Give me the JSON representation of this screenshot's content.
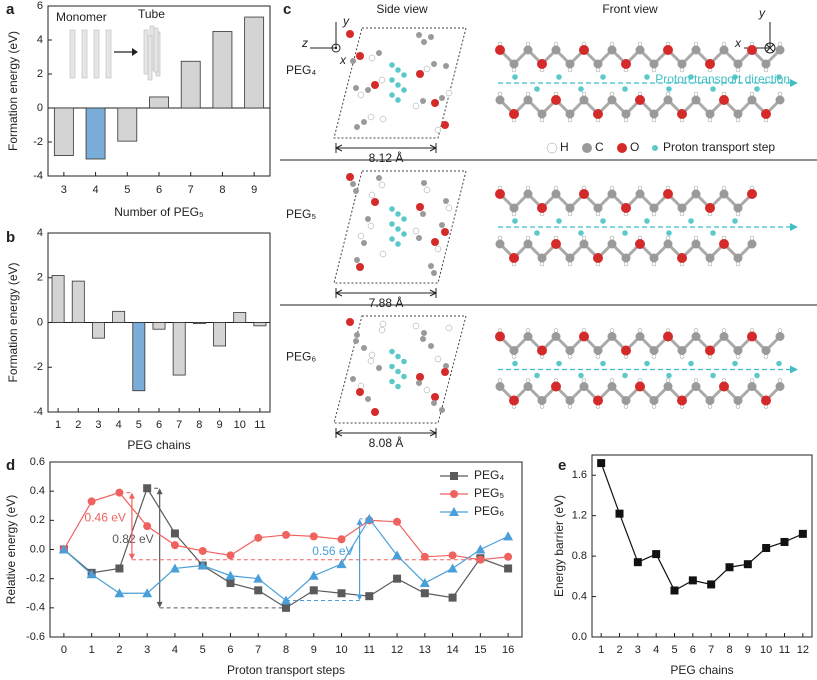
{
  "chart_data": [
    {
      "type": "bar",
      "label": "a",
      "y_label": "Formation energy (eV)",
      "x_label": "Number of PEG₅",
      "categories": [
        "3",
        "4",
        "5",
        "6",
        "7",
        "8",
        "9"
      ],
      "values": [
        -2.8,
        -3.0,
        -1.95,
        0.65,
        2.75,
        4.5,
        5.35
      ],
      "colors": [
        "#d4d4d4",
        "#7aaed8",
        "#d4d4d4",
        "#d4d4d4",
        "#d4d4d4",
        "#d4d4d4",
        "#d4d4d4"
      ],
      "ylim": [
        -4,
        6
      ],
      "yticks": [
        -4,
        -2,
        0,
        2,
        4,
        6
      ],
      "annotations": [
        "Monomer",
        "Tube"
      ]
    },
    {
      "type": "bar",
      "label": "b",
      "y_label": "Formation energy (eV)",
      "x_label": "PEG chains",
      "categories": [
        "1",
        "2",
        "3",
        "4",
        "5",
        "6",
        "7",
        "8",
        "9",
        "10",
        "11"
      ],
      "values": [
        2.1,
        1.85,
        -0.7,
        0.5,
        -3.05,
        -0.3,
        -2.35,
        -0.05,
        -1.05,
        0.45,
        -0.15
      ],
      "colors": [
        "#d4d4d4",
        "#d4d4d4",
        "#d4d4d4",
        "#d4d4d4",
        "#7aaed8",
        "#d4d4d4",
        "#d4d4d4",
        "#d4d4d4",
        "#d4d4d4",
        "#d4d4d4",
        "#d4d4d4"
      ],
      "ylim": [
        -4,
        4
      ],
      "yticks": [
        -4,
        -2,
        0,
        2,
        4
      ]
    },
    {
      "type": "line",
      "label": "d",
      "y_label": "Relative energy (eV)",
      "x_label": "Proton transport steps",
      "x": [
        0,
        1,
        2,
        3,
        4,
        5,
        6,
        7,
        8,
        9,
        10,
        11,
        12,
        13,
        14,
        15,
        16
      ],
      "xlim": [
        -0.5,
        16.5
      ],
      "xticks": [
        0,
        1,
        2,
        3,
        4,
        5,
        6,
        7,
        8,
        9,
        10,
        11,
        12,
        13,
        14,
        15,
        16
      ],
      "ylim": [
        -0.6,
        0.6
      ],
      "yticks": [
        -0.6,
        -0.4,
        -0.2,
        {
          "value": 0,
          "label": "0.0"
        },
        0.2,
        0.4,
        0.6
      ],
      "legend": "upper right",
      "series": [
        {
          "name": "PEG₄",
          "color": "#5a5a5a",
          "marker": "square",
          "annotation": "0.82 eV",
          "values": [
            0,
            -0.16,
            -0.13,
            0.42,
            0.11,
            -0.11,
            -0.23,
            -0.28,
            -0.4,
            -0.28,
            -0.3,
            -0.32,
            -0.2,
            -0.3,
            -0.33,
            -0.06,
            -0.13
          ]
        },
        {
          "name": "PEG₅",
          "color": "#f0625f",
          "marker": "circle",
          "annotation": "0.46 eV",
          "values": [
            0,
            0.33,
            0.39,
            0.16,
            0.03,
            -0.01,
            -0.04,
            0.08,
            0.1,
            0.09,
            0.07,
            0.2,
            0.19,
            -0.05,
            -0.04,
            -0.07,
            -0.05
          ]
        },
        {
          "name": "PEG₆",
          "color": "#4a9fd8",
          "marker": "triangle",
          "annotation": "0.56 eV",
          "values": [
            0,
            -0.17,
            -0.3,
            -0.3,
            -0.13,
            -0.11,
            -0.18,
            -0.2,
            -0.35,
            -0.18,
            -0.1,
            0.21,
            -0.04,
            -0.23,
            -0.13,
            0.0,
            0.09
          ]
        }
      ]
    },
    {
      "type": "line",
      "label": "e",
      "y_label": "Energy barrier (eV)",
      "x_label": "PEG chains",
      "x": [
        1,
        2,
        3,
        4,
        5,
        6,
        7,
        8,
        9,
        10,
        11,
        12
      ],
      "xlim": [
        0.5,
        12.5
      ],
      "xticks": [
        1,
        2,
        3,
        4,
        5,
        6,
        7,
        8,
        9,
        10,
        11,
        12
      ],
      "ylim": [
        0,
        1.8
      ],
      "yticks": [
        {
          "value": 0,
          "label": "0.0"
        },
        0.4,
        0.8,
        1.2,
        1.6
      ],
      "series": [
        {
          "name": "Energy barrier",
          "color": "#111111",
          "marker": "square",
          "values": [
            1.72,
            1.22,
            0.74,
            0.82,
            0.46,
            0.56,
            0.52,
            0.69,
            0.72,
            0.88,
            0.94,
            1.02
          ]
        }
      ]
    }
  ],
  "panel_c": {
    "label": "c",
    "side_view": "Side view",
    "front_view": "Front view",
    "side_axes": [
      "y",
      "z",
      "x"
    ],
    "front_axes": [
      "y",
      "x"
    ],
    "rows": [
      {
        "name": "PEG₄",
        "width": "8.12 Å"
      },
      {
        "name": "PEG₅",
        "width": "7.88 Å"
      },
      {
        "name": "PEG₆",
        "width": "8.08 Å"
      }
    ],
    "legend": [
      "H",
      "C",
      "O",
      "Proton transport step"
    ],
    "direction": "Proton transport direction"
  }
}
